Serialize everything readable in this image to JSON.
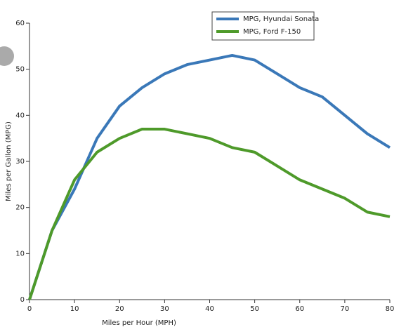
{
  "chart_data": {
    "type": "line",
    "x_label": "Miles per Hour (MPH)",
    "y_label": "Miles per Gallon (MPG)",
    "x": [
      0,
      5,
      10,
      15,
      20,
      25,
      30,
      35,
      40,
      45,
      50,
      55,
      60,
      65,
      70,
      75,
      80
    ],
    "series": [
      {
        "name": "MPG, Hyundai Sonata",
        "color": "#3a78b8",
        "values": [
          0,
          15,
          24,
          35,
          42,
          46,
          49,
          51,
          52,
          53,
          52,
          49,
          46,
          44,
          40,
          36,
          33
        ]
      },
      {
        "name": "MPG, Ford F-150",
        "color": "#4e9a2a",
        "values": [
          0,
          15,
          26,
          32,
          35,
          37,
          37,
          36,
          35,
          33,
          32,
          29,
          26,
          24,
          22,
          19,
          18
        ]
      }
    ],
    "xlim": [
      0,
      80
    ],
    "xticks": [
      0,
      10,
      20,
      30,
      40,
      50,
      60,
      70,
      80
    ],
    "ylim": [
      0,
      60
    ],
    "yticks": [
      0,
      10,
      20,
      30,
      40,
      50,
      60
    ],
    "grid": false,
    "legend": "top-right"
  }
}
